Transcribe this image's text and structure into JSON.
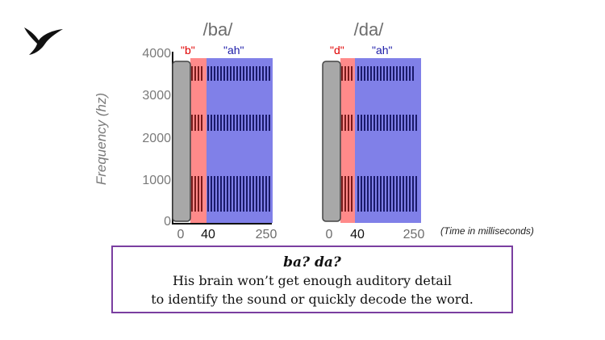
{
  "y_axis": {
    "label": "Frequency (hz)",
    "ticks": [
      "4000",
      "3000",
      "2000",
      "1000",
      "0"
    ]
  },
  "panels": [
    {
      "title": "/ba/",
      "consonant_label": "\"b\"",
      "vowel_label": "\"ah\"",
      "x_ticks": [
        "0",
        "40",
        "250"
      ]
    },
    {
      "title": "/da/",
      "consonant_label": "\"d\"",
      "vowel_label": "\"ah\"",
      "x_ticks": [
        "0",
        "40",
        "250"
      ]
    }
  ],
  "x_unit_note": "(Time in milliseconds)",
  "caption": {
    "heading": "ba? da?",
    "line1": "His brain won’t get enough auditory detail",
    "line2": "to identify the sound or quickly decode the word."
  },
  "colors": {
    "consonant_fill": "#ff8a8a",
    "vowel_fill": "#8080e8",
    "gray_block": "#a8a8a8",
    "box_border": "#7a3ea0"
  }
}
